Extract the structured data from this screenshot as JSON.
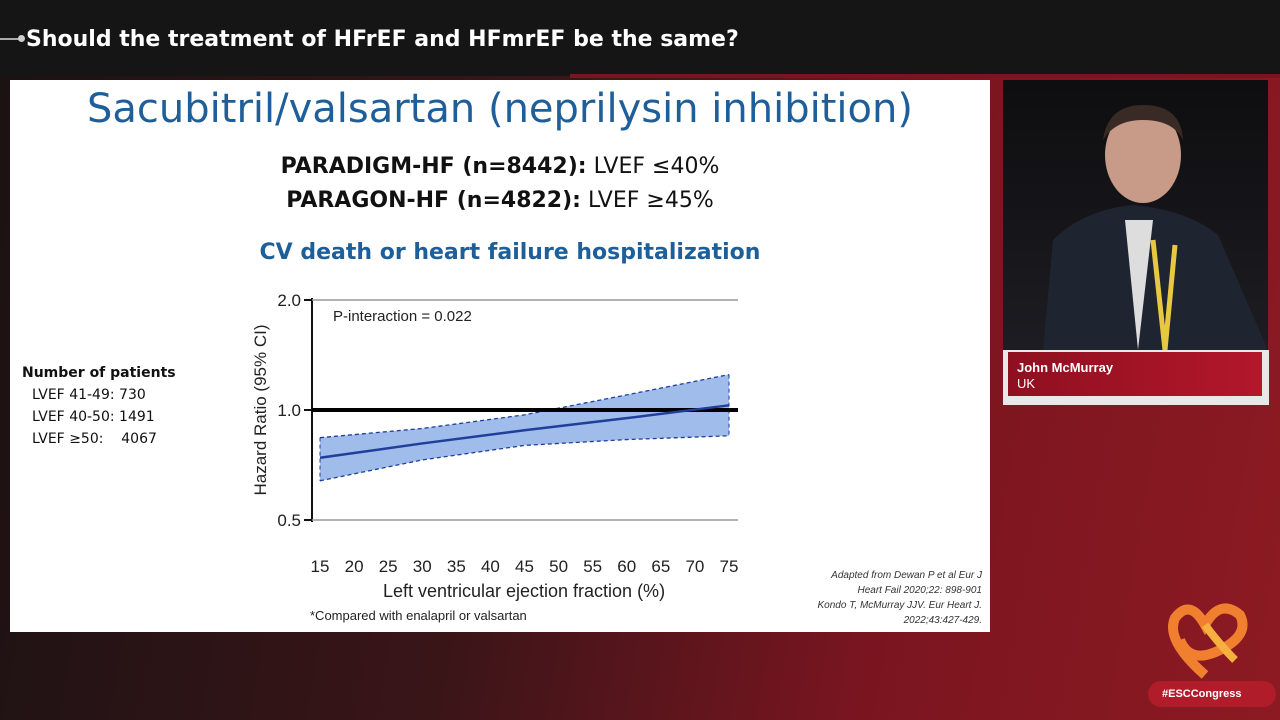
{
  "session_title": "Should the treatment of HFrEF and HFmrEF be the same?",
  "slide": {
    "title": "Sacubitril/valsartan (neprilysin inhibition)",
    "trials": [
      {
        "name": "PARADIGM-HF (n=8442):",
        "criterion": "LVEF ≤40%"
      },
      {
        "name": "PARAGON-HF (n=4822):",
        "criterion": "LVEF ≥45%"
      }
    ],
    "patients": {
      "heading": "Number of patients",
      "rows": [
        "LVEF 41-49: 730",
        "LVEF 40-50: 1491",
        "LVEF ≥50:    4067"
      ]
    },
    "references": [
      "Adapted from Dewan P et al Eur J",
      "Heart Fail 2020;22: 898-901",
      "Kondo T, McMurray JJV. Eur Heart J.",
      "2022;43:427-429."
    ],
    "footnote": "*Compared with enalapril or valsartan"
  },
  "chart_data": {
    "type": "line",
    "title": "CV death or heart failure hospitalization",
    "xlabel": "Left ventricular ejection fraction (%)",
    "ylabel": "Hazard Ratio (95% CI)",
    "annotation": "P-interaction = 0.022",
    "xlim": [
      15,
      75
    ],
    "ylim": [
      0.5,
      2.0
    ],
    "yscale": "log",
    "xticks": [
      15,
      20,
      25,
      30,
      35,
      40,
      45,
      50,
      55,
      60,
      65,
      70,
      75
    ],
    "yticks": [
      "0.5",
      "1.0",
      "2.0"
    ],
    "reference_line": 1.0,
    "x": [
      15,
      30,
      45,
      60,
      75
    ],
    "series": [
      {
        "values": [
          0.74,
          0.81,
          0.88,
          0.95,
          1.03
        ],
        "lower": [
          0.64,
          0.73,
          0.8,
          0.83,
          0.85
        ],
        "upper": [
          0.84,
          0.89,
          0.97,
          1.1,
          1.25
        ]
      }
    ],
    "colors": {
      "line": "#1f3f9a",
      "band": "#8fb0e6"
    }
  },
  "speaker": {
    "name": "John McMurray",
    "country": "UK"
  },
  "hashtag": "#ESCCongress"
}
